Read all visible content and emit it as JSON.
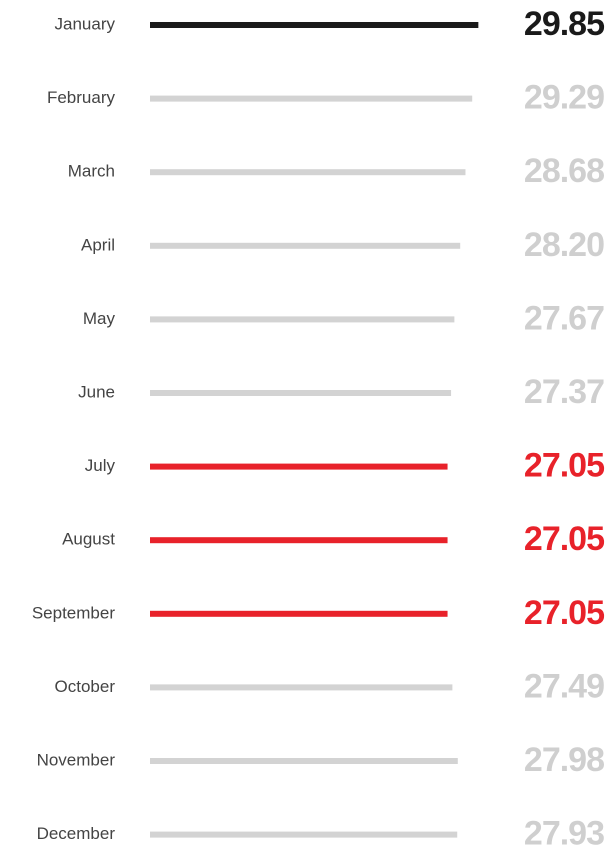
{
  "chart_data": {
    "type": "bar",
    "orientation": "horizontal",
    "categories": [
      "January",
      "February",
      "March",
      "April",
      "May",
      "June",
      "July",
      "August",
      "September",
      "October",
      "November",
      "December"
    ],
    "values": [
      29.85,
      29.29,
      28.68,
      28.2,
      27.67,
      27.37,
      27.05,
      27.05,
      27.05,
      27.49,
      27.98,
      27.93
    ],
    "value_labels": [
      "29.85",
      "29.29",
      "28.68",
      "28.20",
      "27.67",
      "27.37",
      "27.05",
      "27.05",
      "27.05",
      "27.49",
      "27.98",
      "27.93"
    ],
    "colors": [
      "#1a1a1a",
      "#d3d3d3",
      "#d3d3d3",
      "#d3d3d3",
      "#d3d3d3",
      "#d3d3d3",
      "#e8222a",
      "#e8222a",
      "#e8222a",
      "#d3d3d3",
      "#d3d3d3",
      "#d3d3d3"
    ],
    "xlim": [
      0,
      30
    ]
  }
}
